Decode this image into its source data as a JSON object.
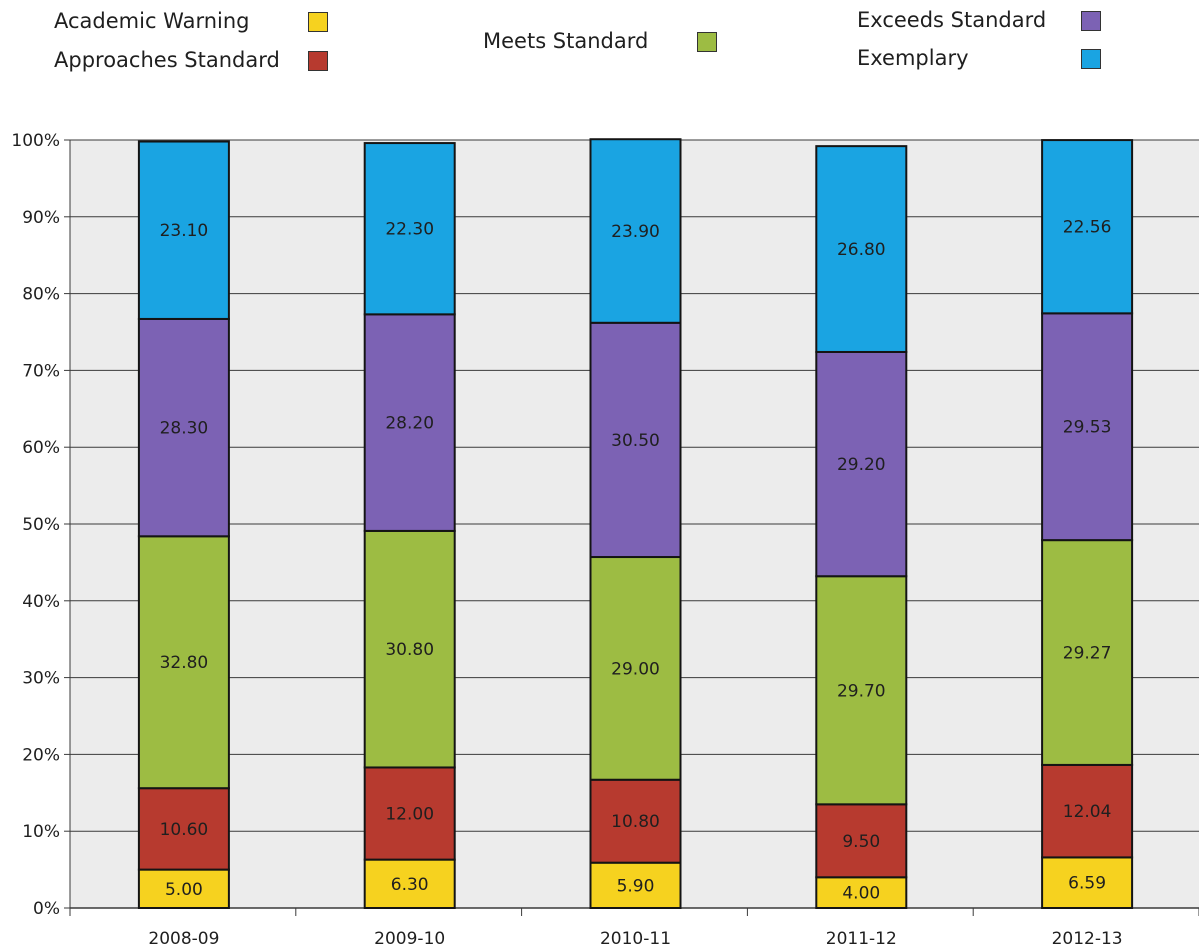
{
  "legend": {
    "academic_warning": "Academic Warning",
    "approaches_standard": "Approaches Standard",
    "meets_standard": "Meets Standard",
    "exceeds_standard": "Exceeds Standard",
    "exemplary": "Exemplary"
  },
  "chart_data": {
    "type": "bar",
    "stacked": true,
    "title": "",
    "xlabel": "",
    "ylabel": "",
    "ylim": [
      0,
      100
    ],
    "y_ticks": [
      "0%",
      "10%",
      "20%",
      "30%",
      "40%",
      "50%",
      "60%",
      "70%",
      "80%",
      "90%",
      "100%"
    ],
    "grid": true,
    "legend_position": "top",
    "categories": [
      "2008-09",
      "2009-10",
      "2010-11",
      "2011-12",
      "2012-13"
    ],
    "series": [
      {
        "name": "Academic Warning",
        "color": "#f6d21f",
        "values": [
          5.0,
          6.3,
          5.9,
          4.0,
          6.59
        ],
        "labels": [
          "5.00",
          "6.30",
          "5.90",
          "4.00",
          "6.59"
        ]
      },
      {
        "name": "Approaches Standard",
        "color": "#b73a2f",
        "values": [
          10.6,
          12.0,
          10.8,
          9.5,
          12.04
        ],
        "labels": [
          "10.60",
          "12.00",
          "10.80",
          "9.50",
          "12.04"
        ]
      },
      {
        "name": "Meets Standard",
        "color": "#9dbc43",
        "values": [
          32.8,
          30.8,
          29.0,
          29.7,
          29.27
        ],
        "labels": [
          "32.80",
          "30.80",
          "29.00",
          "29.70",
          "29.27"
        ]
      },
      {
        "name": "Exceeds Standard",
        "color": "#7c62b4",
        "values": [
          28.3,
          28.2,
          30.5,
          29.2,
          29.53
        ],
        "labels": [
          "28.30",
          "28.20",
          "30.50",
          "29.20",
          "29.53"
        ]
      },
      {
        "name": "Exemplary",
        "color": "#1aa4e2",
        "values": [
          23.1,
          22.3,
          23.9,
          26.8,
          22.56
        ],
        "labels": [
          "23.10",
          "22.30",
          "23.90",
          "26.80",
          "22.56"
        ]
      }
    ]
  }
}
